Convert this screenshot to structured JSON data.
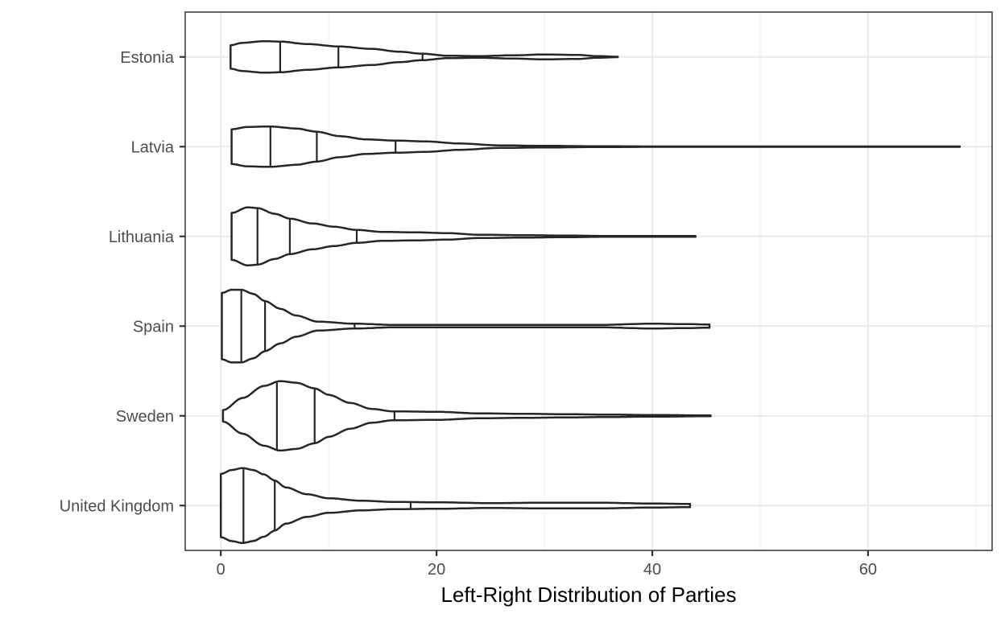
{
  "chart_data": {
    "type": "violin",
    "title": "",
    "xlabel": "Left-Right Distribution of Parties",
    "ylabel": "",
    "xlim": [
      -3.3,
      71.5
    ],
    "x_ticks": [
      0,
      20,
      40,
      60
    ],
    "x_minor_ticks": [
      10,
      30,
      50,
      70
    ],
    "grid": true,
    "legend": "none",
    "categories": [
      "United Kingdom",
      "Sweden",
      "Spain",
      "Lithuania",
      "Latvia",
      "Estonia"
    ],
    "series": [
      {
        "category": "United Kingdom",
        "min": 0,
        "max": 43.5,
        "quantiles": [
          2.1,
          5.0,
          17.6
        ],
        "profile": [
          [
            0,
            0.78
          ],
          [
            1,
            0.88
          ],
          [
            2,
            0.93
          ],
          [
            3,
            0.88
          ],
          [
            4,
            0.77
          ],
          [
            5,
            0.62
          ],
          [
            6,
            0.45
          ],
          [
            8,
            0.28
          ],
          [
            10,
            0.18
          ],
          [
            13,
            0.12
          ],
          [
            16,
            0.09
          ],
          [
            20,
            0.08
          ],
          [
            25,
            0.06
          ],
          [
            30,
            0.07
          ],
          [
            35,
            0.07
          ],
          [
            40,
            0.05
          ],
          [
            43.5,
            0.04
          ]
        ]
      },
      {
        "category": "Sweden",
        "min": 0.2,
        "max": 45.4,
        "quantiles": [
          5.2,
          8.7,
          16.1
        ],
        "profile": [
          [
            0.2,
            0.14
          ],
          [
            2,
            0.44
          ],
          [
            4,
            0.74
          ],
          [
            5.5,
            0.86
          ],
          [
            7,
            0.82
          ],
          [
            8.7,
            0.68
          ],
          [
            10,
            0.52
          ],
          [
            12,
            0.32
          ],
          [
            14,
            0.17
          ],
          [
            16,
            0.11
          ],
          [
            20,
            0.1
          ],
          [
            24,
            0.06
          ],
          [
            28,
            0.05
          ],
          [
            32,
            0.04
          ],
          [
            36,
            0.03
          ],
          [
            40,
            0.02
          ],
          [
            45.4,
            0.01
          ]
        ]
      },
      {
        "category": "Spain",
        "min": 0.1,
        "max": 45.3,
        "quantiles": [
          1.9,
          4.1,
          12.4
        ],
        "profile": [
          [
            0.1,
            0.82
          ],
          [
            1,
            0.9
          ],
          [
            1.9,
            0.9
          ],
          [
            3,
            0.8
          ],
          [
            4.1,
            0.62
          ],
          [
            5.5,
            0.43
          ],
          [
            7,
            0.26
          ],
          [
            9,
            0.11
          ],
          [
            12.4,
            0.06
          ],
          [
            16,
            0.03
          ],
          [
            20,
            0.03
          ],
          [
            25,
            0.03
          ],
          [
            30,
            0.03
          ],
          [
            35,
            0.03
          ],
          [
            40,
            0.06
          ],
          [
            43,
            0.05
          ],
          [
            45.3,
            0.04
          ]
        ]
      },
      {
        "category": "Lithuania",
        "min": 1.0,
        "max": 44.0,
        "quantiles": [
          3.4,
          6.4,
          12.6
        ],
        "profile": [
          [
            1,
            0.58
          ],
          [
            2.5,
            0.72
          ],
          [
            3.4,
            0.7
          ],
          [
            5,
            0.56
          ],
          [
            6.4,
            0.44
          ],
          [
            8.5,
            0.32
          ],
          [
            10.5,
            0.24
          ],
          [
            12.6,
            0.16
          ],
          [
            15,
            0.11
          ],
          [
            18,
            0.1
          ],
          [
            21,
            0.08
          ],
          [
            24,
            0.04
          ],
          [
            28,
            0.03
          ],
          [
            32,
            0.02
          ],
          [
            36,
            0.01
          ],
          [
            40,
            0.01
          ],
          [
            44,
            0.01
          ]
        ]
      },
      {
        "category": "Latvia",
        "min": 1.0,
        "max": 68.5,
        "quantiles": [
          4.6,
          8.9,
          16.2
        ],
        "profile": [
          [
            1,
            0.43
          ],
          [
            2.5,
            0.49
          ],
          [
            4.6,
            0.5
          ],
          [
            7,
            0.45
          ],
          [
            8.9,
            0.37
          ],
          [
            11,
            0.26
          ],
          [
            13.5,
            0.18
          ],
          [
            16.2,
            0.15
          ],
          [
            19,
            0.13
          ],
          [
            22,
            0.08
          ],
          [
            26,
            0.03
          ],
          [
            30,
            0.02
          ],
          [
            35,
            0.01
          ],
          [
            40,
            0.005
          ],
          [
            50,
            0.005
          ],
          [
            60,
            0.005
          ],
          [
            68.5,
            0.005
          ]
        ]
      },
      {
        "category": "Estonia",
        "min": 0.9,
        "max": 36.8,
        "quantiles": [
          5.5,
          10.9,
          18.7
        ],
        "profile": [
          [
            0.9,
            0.29
          ],
          [
            2,
            0.35
          ],
          [
            4,
            0.39
          ],
          [
            5.5,
            0.38
          ],
          [
            8,
            0.32
          ],
          [
            10.9,
            0.26
          ],
          [
            14,
            0.2
          ],
          [
            16.5,
            0.13
          ],
          [
            18.7,
            0.08
          ],
          [
            21,
            0.03
          ],
          [
            24,
            0.02
          ],
          [
            27,
            0.04
          ],
          [
            30,
            0.06
          ],
          [
            33,
            0.05
          ],
          [
            35,
            0.02
          ],
          [
            36.8,
            0.005
          ]
        ]
      }
    ]
  }
}
